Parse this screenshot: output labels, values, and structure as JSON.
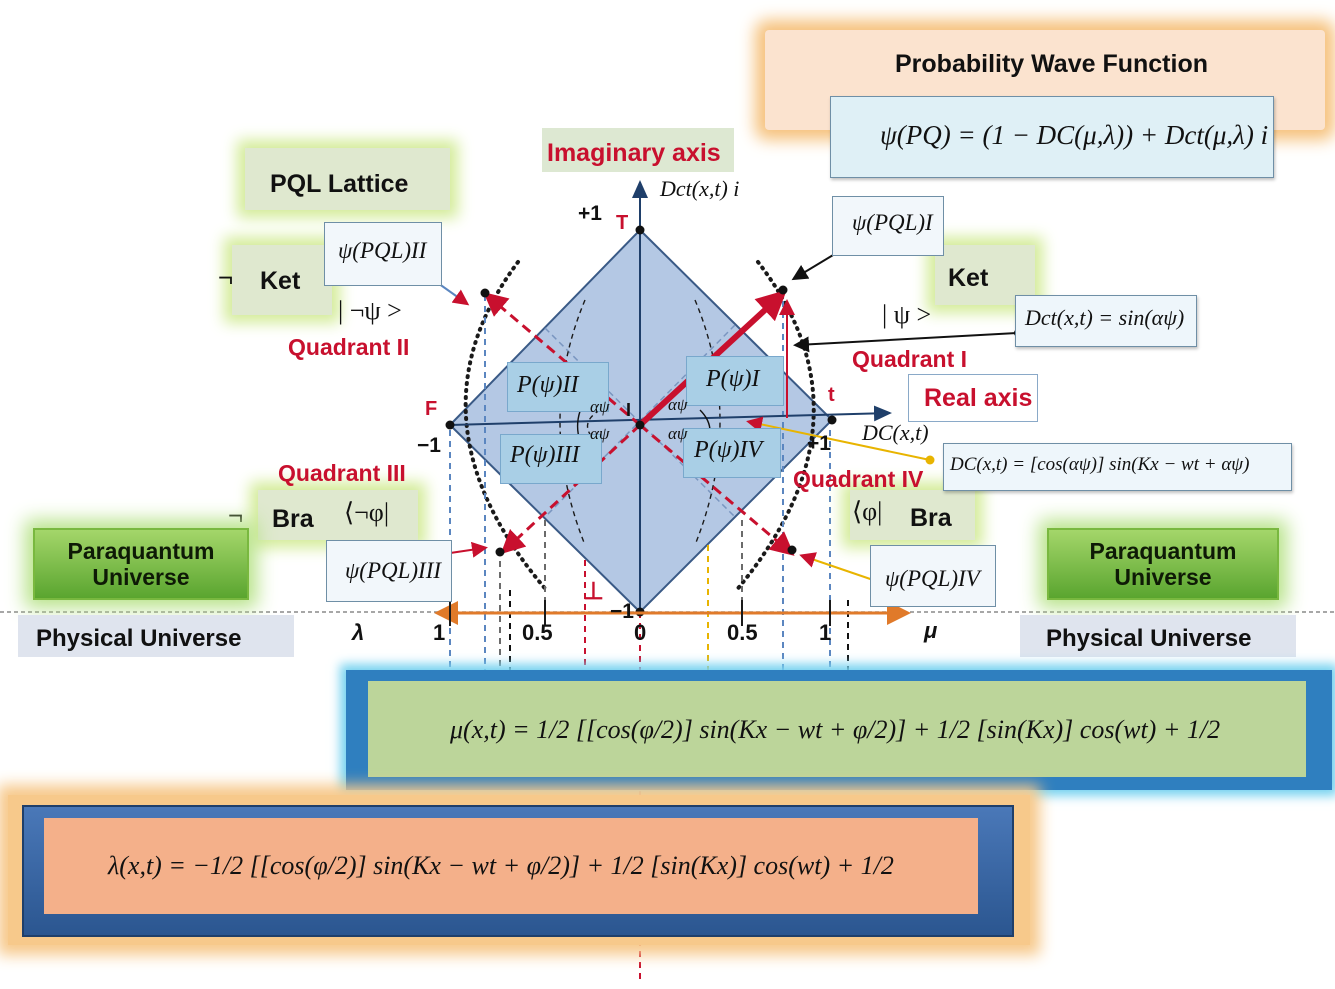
{
  "title": "Probability Wave Function",
  "psi_pq_formula": "ψ(PQ) = (1 − DC(μ,λ)) + Dct(μ,λ) i",
  "imaginary_axis": "Imaginary axis",
  "imaginary_axis_symbol": "Dct(x,t) i",
  "real_axis": "Real axis",
  "real_axis_symbol": "DC(x,t)",
  "lattice_label": "PQL Lattice",
  "ket_left": "Ket",
  "ket_right": "Ket",
  "bra_left": "Bra",
  "bra_right": "Bra",
  "neg_symbol": "¬",
  "ket_neg_psi": "| ¬ψ >",
  "ket_psi": "| ψ >",
  "bra_neg_phi": "⟨¬φ|",
  "bra_phi": "⟨φ|",
  "psi_I": "ψ(PQL)I",
  "psi_II": "ψ(PQL)II",
  "psi_III": "ψ(PQL)III",
  "psi_IV": "ψ(PQL)IV",
  "dct_formula": "Dct(x,t) = sin(αψ)",
  "dc_formula": "DC(x,t) = [cos(αψ)] sin(Kx − wt + αψ)",
  "quadrant_I": "Quadrant I",
  "quadrant_II": "Quadrant II",
  "quadrant_III": "Quadrant III",
  "quadrant_IV": "Quadrant IV",
  "p_I": "P(ψ)I",
  "p_II": "P(ψ)II",
  "p_III": "P(ψ)III",
  "p_IV": "P(ψ)IV",
  "alpha": "αψ",
  "vertices": {
    "T": "T",
    "F": "F",
    "I": "I",
    "t": "t",
    "bottom": "⊥"
  },
  "ticks": {
    "plus1_top": "+1",
    "minus1_left": "−1",
    "plus1_right": "+1",
    "minus1_bottom": "−1"
  },
  "scale": {
    "lambda": "λ",
    "mu": "μ",
    "l1": "1",
    "l05": "0.5",
    "zero": "0",
    "r05": "0.5",
    "r1": "1"
  },
  "paraquantum": "Paraquantum Universe",
  "physical": "Physical Universe",
  "mu_formula": "μ(x,t) = 1/2 [[cos(φ/2)] sin(Kx − wt + φ/2)] + 1/2 [sin(Kx)] cos(wt) + 1/2",
  "lambda_formula": "λ(x,t) = −1/2 [[cos(φ/2)] sin(Kx − wt + φ/2)] + 1/2 [sin(Kx)] cos(wt) + 1/2",
  "colors": {
    "accent_red": "#c8102e",
    "diamond": "#b4c8e4",
    "orange_axis": "#e07a2a",
    "green_panel": "#bcd59a",
    "orange_panel": "#f4b08a"
  }
}
